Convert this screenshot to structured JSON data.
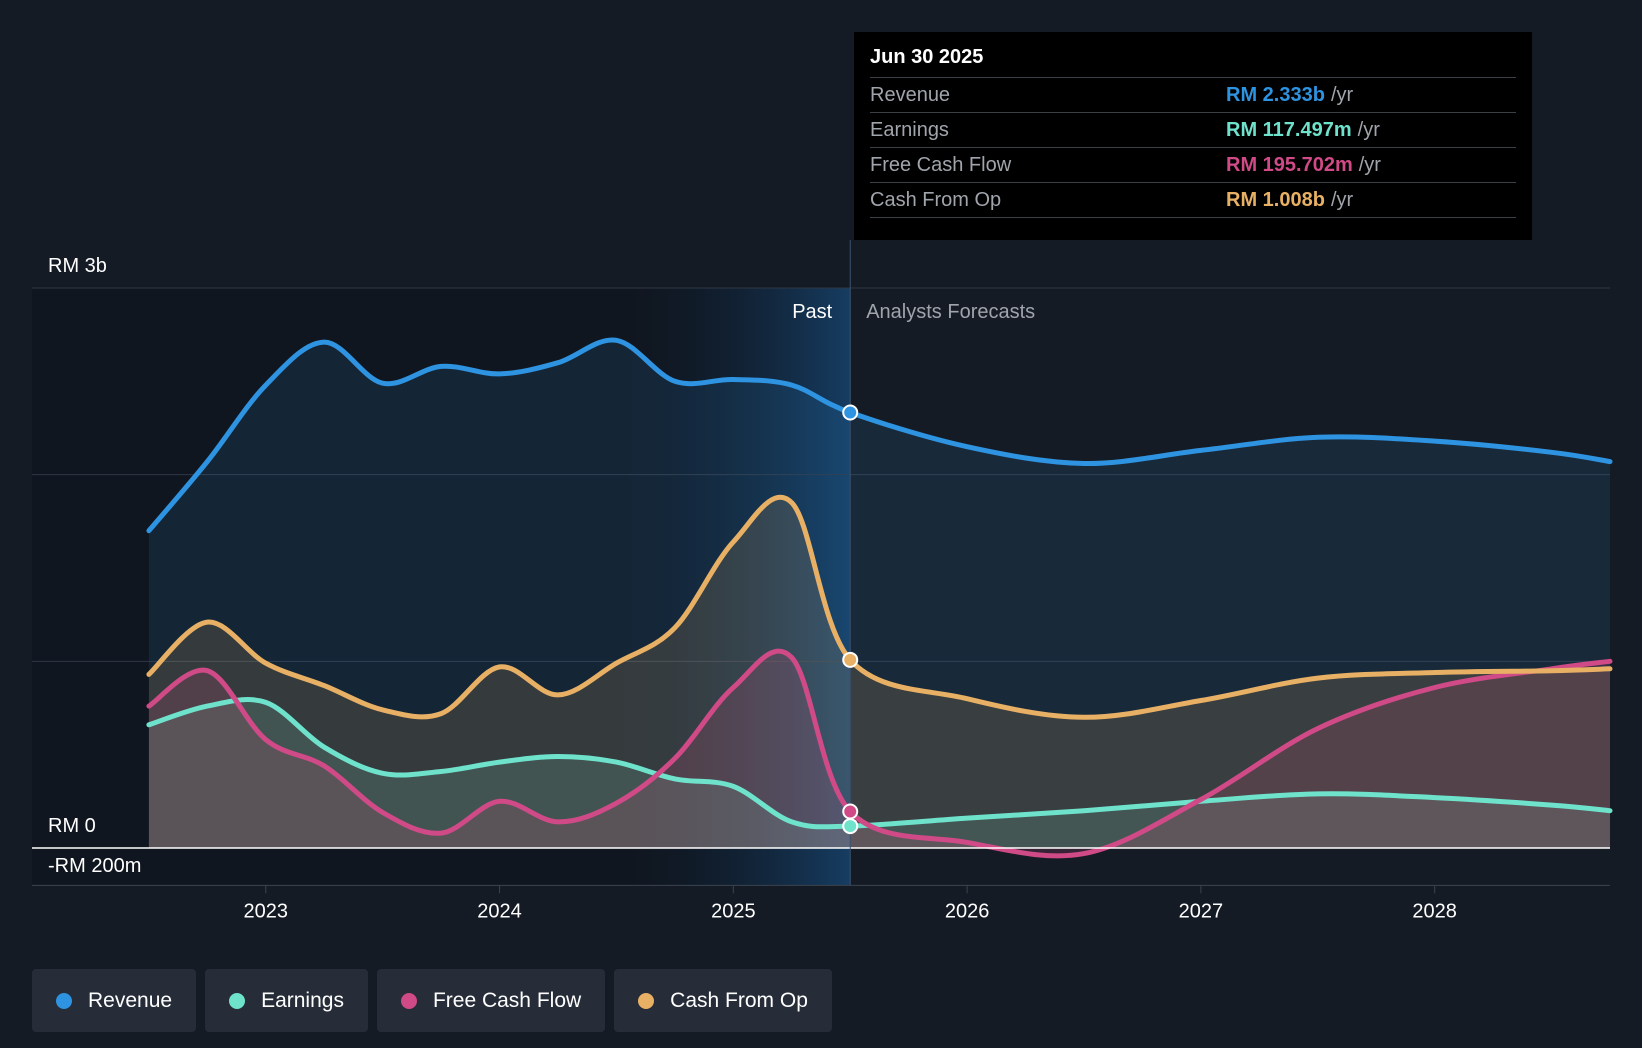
{
  "colors": {
    "revenue": "#2e93e0",
    "earnings": "#6fe2cc",
    "fcf": "#cf4a86",
    "cfo": "#e8b064"
  },
  "tooltip": {
    "date": "Jun 30 2025",
    "rows": [
      {
        "label": "Revenue",
        "value": "RM 2.333b",
        "unit": "/yr"
      },
      {
        "label": "Earnings",
        "value": "RM 117.497m",
        "unit": "/yr"
      },
      {
        "label": "Free Cash Flow",
        "value": "RM 195.702m",
        "unit": "/yr"
      },
      {
        "label": "Cash From Op",
        "value": "RM 1.008b",
        "unit": "/yr"
      }
    ]
  },
  "legend": [
    {
      "label": "Revenue",
      "color_key": "revenue"
    },
    {
      "label": "Earnings",
      "color_key": "earnings"
    },
    {
      "label": "Free Cash Flow",
      "color_key": "fcf"
    },
    {
      "label": "Cash From Op",
      "color_key": "cfo"
    }
  ],
  "chart_data": {
    "type": "area",
    "past_label": "Past",
    "forecast_label": "Analysts Forecasts",
    "y_tick_labels": {
      "top": "RM 3b",
      "zero": "RM 0",
      "bottom": "-RM 200m"
    },
    "ylim_millions": [
      -200,
      3000
    ],
    "x_tick_labels": [
      "2023",
      "2024",
      "2025",
      "2026",
      "2027",
      "2028"
    ],
    "x_ticks": [
      2023.0,
      2024.0,
      2025.0,
      2026.0,
      2027.0,
      2028.0
    ],
    "xlim": [
      2022.0,
      2028.75
    ],
    "past_highlight_start": 2024.5,
    "forecast_start": 2025.5,
    "series": [
      {
        "name": "Revenue",
        "color_key": "revenue",
        "points": [
          [
            2022.5,
            1700
          ],
          [
            2022.75,
            2070
          ],
          [
            2023.0,
            2480
          ],
          [
            2023.25,
            2710
          ],
          [
            2023.5,
            2490
          ],
          [
            2023.75,
            2580
          ],
          [
            2024.0,
            2540
          ],
          [
            2024.25,
            2600
          ],
          [
            2024.5,
            2720
          ],
          [
            2024.75,
            2500
          ],
          [
            2025.0,
            2510
          ],
          [
            2025.25,
            2480
          ],
          [
            2025.5,
            2333
          ],
          [
            2026.0,
            2150
          ],
          [
            2026.5,
            2060
          ],
          [
            2027.0,
            2130
          ],
          [
            2027.5,
            2200
          ],
          [
            2028.0,
            2180
          ],
          [
            2028.5,
            2120
          ],
          [
            2028.75,
            2070
          ]
        ]
      },
      {
        "name": "Earnings",
        "color_key": "earnings",
        "points": [
          [
            2022.5,
            660
          ],
          [
            2022.75,
            760
          ],
          [
            2023.0,
            780
          ],
          [
            2023.25,
            540
          ],
          [
            2023.5,
            400
          ],
          [
            2023.75,
            410
          ],
          [
            2024.0,
            460
          ],
          [
            2024.25,
            490
          ],
          [
            2024.5,
            460
          ],
          [
            2024.75,
            370
          ],
          [
            2025.0,
            330
          ],
          [
            2025.25,
            140
          ],
          [
            2025.5,
            117.5
          ],
          [
            2026.0,
            160
          ],
          [
            2026.5,
            200
          ],
          [
            2027.0,
            250
          ],
          [
            2027.5,
            290
          ],
          [
            2028.0,
            270
          ],
          [
            2028.5,
            230
          ],
          [
            2028.75,
            200
          ]
        ]
      },
      {
        "name": "Free Cash Flow",
        "color_key": "fcf",
        "points": [
          [
            2022.5,
            760
          ],
          [
            2022.75,
            950
          ],
          [
            2023.0,
            580
          ],
          [
            2023.25,
            440
          ],
          [
            2023.5,
            190
          ],
          [
            2023.75,
            80
          ],
          [
            2024.0,
            250
          ],
          [
            2024.25,
            140
          ],
          [
            2024.5,
            240
          ],
          [
            2024.75,
            480
          ],
          [
            2025.0,
            860
          ],
          [
            2025.25,
            1020
          ],
          [
            2025.5,
            195.7
          ],
          [
            2026.0,
            30
          ],
          [
            2026.5,
            -30
          ],
          [
            2027.0,
            260
          ],
          [
            2027.5,
            640
          ],
          [
            2028.0,
            860
          ],
          [
            2028.5,
            960
          ],
          [
            2028.75,
            1000
          ]
        ]
      },
      {
        "name": "Cash From Op",
        "color_key": "cfo",
        "points": [
          [
            2022.5,
            930
          ],
          [
            2022.75,
            1210
          ],
          [
            2023.0,
            990
          ],
          [
            2023.25,
            870
          ],
          [
            2023.5,
            740
          ],
          [
            2023.75,
            720
          ],
          [
            2024.0,
            970
          ],
          [
            2024.25,
            820
          ],
          [
            2024.5,
            990
          ],
          [
            2024.75,
            1180
          ],
          [
            2025.0,
            1640
          ],
          [
            2025.25,
            1850
          ],
          [
            2025.5,
            1008
          ],
          [
            2026.0,
            800
          ],
          [
            2026.5,
            700
          ],
          [
            2027.0,
            790
          ],
          [
            2027.5,
            910
          ],
          [
            2028.0,
            940
          ],
          [
            2028.5,
            950
          ],
          [
            2028.75,
            960
          ]
        ]
      }
    ]
  }
}
